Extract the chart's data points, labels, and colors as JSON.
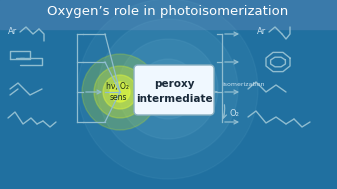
{
  "title": "Oxygen’s role in photoisomerization",
  "title_color": "#ffffff",
  "title_fontsize": 9.5,
  "bg_top_color": "#4a8fb5",
  "bg_bottom_color": "#1a5a8a",
  "box_text_line1": "peroxy",
  "box_text_line2": "intermediate",
  "hv_o2_text": "hν, O₂",
  "sens_text": "sens",
  "isomerization_text": "isomerization",
  "o2_text": "O₂",
  "arrow_color": "#90bdd0",
  "structure_color": "#90bdd0",
  "label_color": "#c8e0ee",
  "glow_color1": "#d4f040",
  "glow_color2": "#e8f870",
  "box_facecolor": "#f0f8ff",
  "box_edgecolor": "#8ab0c0",
  "title_bg": "#3d7aaa"
}
